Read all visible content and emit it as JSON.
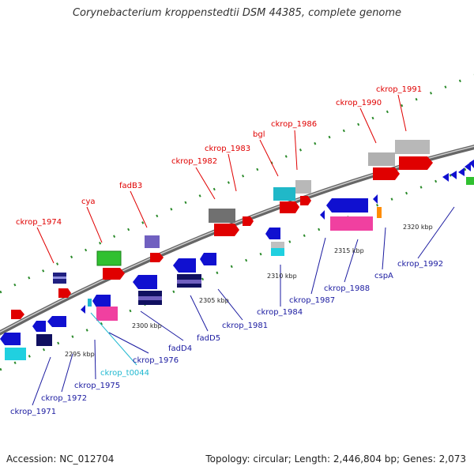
{
  "title": "Corynebacterium kroppenstedtii DSM 44385, complete genome",
  "footer": {
    "accession": "Accession: NC_012704",
    "topology": "Topology: circular; Length: 2,446,804 bp; Genes: 2,073"
  },
  "colors": {
    "top_label": "#e00000",
    "bottom_label": "#1a1aa0",
    "trna_label": "#20b8d0"
  },
  "kbp_labels": [
    "2295 kbp",
    "2300 kbp",
    "2305 kbp",
    "2310 kbp",
    "2315 kbp",
    "2320 kbp"
  ],
  "top_labels": [
    "ckrop_1974",
    "cya",
    "fadB3",
    "ckrop_1982",
    "ckrop_1983",
    "bgl",
    "ckrop_1986",
    "ckrop_1990",
    "ckrop_1991"
  ],
  "bottom_labels": [
    "ckrop_1971",
    "ckrop_1972",
    "ckrop_1975",
    "ckrop_t0044",
    "ckrop_1976",
    "fadD4",
    "fadD5",
    "ckrop_1981",
    "ckrop_1984",
    "ckrop_1987",
    "ckrop_1988",
    "cspA",
    "ckrop_1992"
  ]
}
